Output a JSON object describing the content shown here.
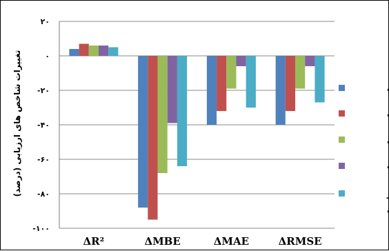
{
  "chart_data": {
    "type": "bar",
    "ylabel": "تغییرات شاخص های ارزیابی (درصد)",
    "ylim": [
      -100,
      20
    ],
    "yticks": [
      20,
      0,
      -20,
      -40,
      -60,
      -80,
      -100
    ],
    "ytick_labels": [
      "۲۰",
      "۰",
      "-۲۰",
      "-۴۰",
      "-۶۰",
      "-۸۰",
      "-۱۰۰"
    ],
    "grid": true,
    "legend_position": "right",
    "categories": [
      "ΔR²",
      "ΔMBE",
      "ΔMAE",
      "ΔRMSE"
    ],
    "series": [
      {
        "name": "خشک",
        "color": "#4F81BD",
        "values": [
          4,
          -88,
          -40,
          -40
        ]
      },
      {
        "name": "نیمه خشک",
        "color": "#C0504D",
        "values": [
          7,
          -95,
          -32,
          -32
        ]
      },
      {
        "name": "مدیترانه ای",
        "color": "#9BBB59",
        "values": [
          6,
          -68,
          -19,
          -19
        ]
      },
      {
        "name": "مرطوب",
        "color": "#8064A2",
        "values": [
          6,
          -39,
          -6,
          -6
        ]
      },
      {
        "name": "بسیار مرطوب",
        "color": "#4BACC6",
        "values": [
          5,
          -64,
          -30,
          -27
        ]
      }
    ]
  }
}
